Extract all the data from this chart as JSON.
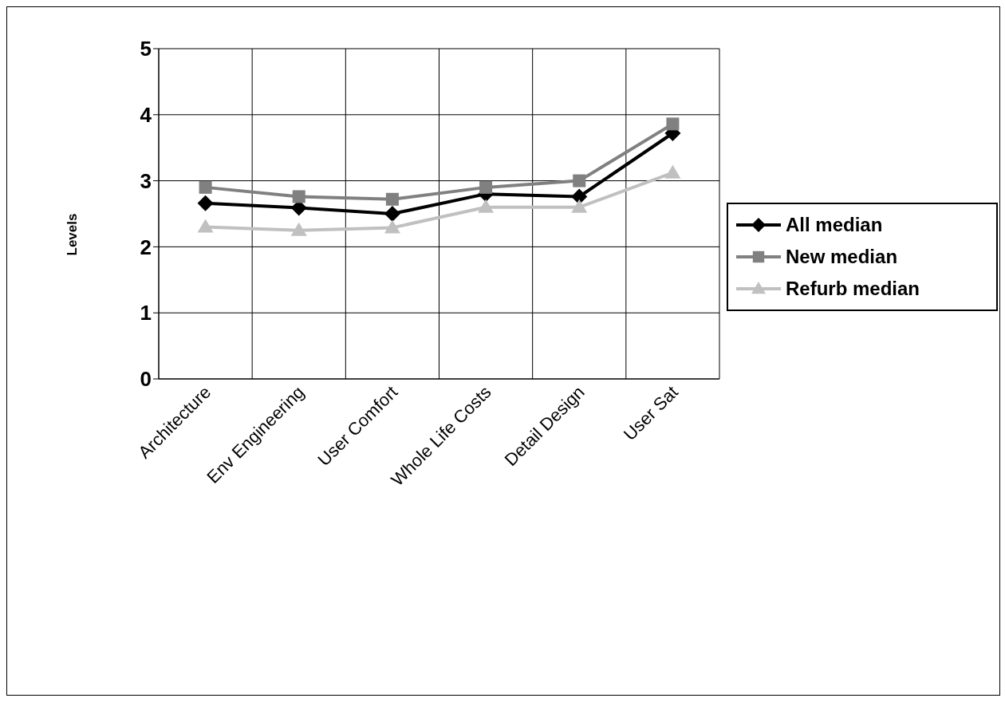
{
  "chart_data": {
    "type": "line",
    "ylabel": "Levels",
    "categories": [
      "Architecture",
      "Env Engineering",
      "User Comfort",
      "Whole Life Costs",
      "Detail Design",
      "User Sat"
    ],
    "series": [
      {
        "name": "All median",
        "color": "#000000",
        "marker": "diamond",
        "values": [
          2.66,
          2.59,
          2.5,
          2.8,
          2.76,
          3.72
        ]
      },
      {
        "name": "New median",
        "color": "#808080",
        "marker": "square",
        "values": [
          2.9,
          2.76,
          2.72,
          2.9,
          3.0,
          3.86
        ]
      },
      {
        "name": "Refurb median",
        "color": "#c0c0c0",
        "marker": "triangle",
        "values": [
          2.3,
          2.25,
          2.29,
          2.6,
          2.6,
          3.12
        ]
      }
    ],
    "ylim": [
      0,
      5
    ],
    "yticks": [
      0,
      1,
      2,
      3,
      4,
      5
    ],
    "grid": true,
    "legend": "right",
    "line_style": "solid"
  }
}
